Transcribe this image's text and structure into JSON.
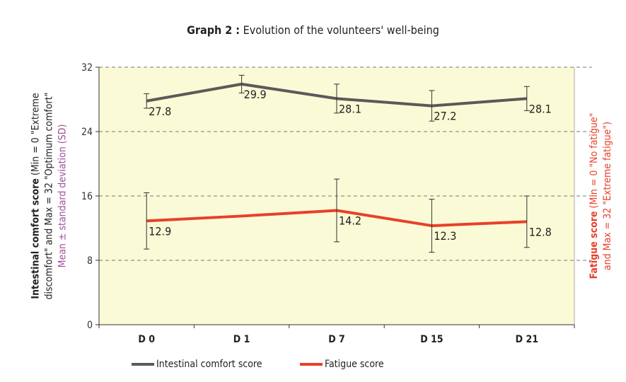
{
  "title": {
    "bold": "Graph 2 :",
    "rest": "Evolution of the volunteers' well-being"
  },
  "left_axis": {
    "line1_bold": "Intestinal comfort score",
    "line1_rest": " (Min = 0 \"Extreme",
    "line2": "discomfort\" and Max = 32 \"Optimum comfort\"",
    "line3": "Mean ± standard deviation (SD)"
  },
  "right_axis": {
    "line1_bold": "Fatigue score",
    "line1_rest": " (Min = 0 \"No fatigue\"",
    "line2": "and Max = 32 \"Extreme fatigue\")"
  },
  "colors": {
    "background": "#fbfad6",
    "intestinal": "#5a5a5a",
    "fatigue": "#e8402a",
    "sd_label": "#a0509a"
  },
  "chart_data": {
    "type": "line",
    "categories": [
      "D 0",
      "D 1",
      "D 7",
      "D 15",
      "D 21"
    ],
    "ylim": [
      0,
      32
    ],
    "yticks": [
      0,
      8,
      16,
      24,
      32
    ],
    "grid": "dashed horizontal",
    "series": [
      {
        "name": "Intestinal comfort score",
        "color": "#5a5a5a",
        "values": [
          27.8,
          29.9,
          28.1,
          27.2,
          28.1
        ],
        "sd": [
          0.9,
          1.1,
          1.8,
          1.9,
          1.5
        ],
        "labels": [
          "27.8",
          "29.9",
          "28.1",
          "27.2",
          "28.1"
        ]
      },
      {
        "name": "Fatigue score",
        "color": "#e8402a",
        "values": [
          12.9,
          13.5,
          14.2,
          12.3,
          12.8
        ],
        "sd": [
          3.5,
          null,
          3.9,
          3.3,
          3.2
        ],
        "labels": [
          "12.9",
          "",
          "14.2",
          "12.3",
          "12.8"
        ]
      }
    ],
    "legend": "bottom"
  }
}
